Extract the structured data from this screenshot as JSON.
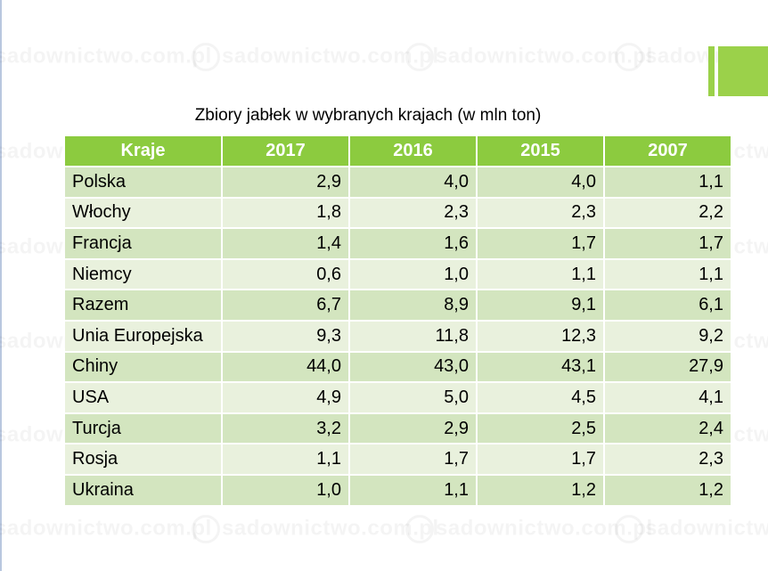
{
  "watermark": "sadownictwo.com.pl",
  "title": "Zbiory jabłek w wybranych krajach (w mln ton)",
  "table": {
    "headers": [
      "Kraje",
      "2017",
      "2016",
      "2015",
      "2007"
    ],
    "rows": [
      [
        "Polska",
        "2,9",
        "4,0",
        "4,0",
        "1,1"
      ],
      [
        "Włochy",
        "1,8",
        "2,3",
        "2,3",
        "2,2"
      ],
      [
        "Francja",
        "1,4",
        "1,6",
        "1,7",
        "1,7"
      ],
      [
        "Niemcy",
        "0,6",
        "1,0",
        "1,1",
        "1,1"
      ],
      [
        "Razem",
        "6,7",
        "8,9",
        "9,1",
        "6,1"
      ],
      [
        "Unia Europejska",
        "9,3",
        "11,8",
        "12,3",
        "9,2"
      ],
      [
        "Chiny",
        "44,0",
        "43,0",
        "43,1",
        "27,9"
      ],
      [
        "USA",
        "4,9",
        "5,0",
        "4,5",
        "4,1"
      ],
      [
        "Turcja",
        "3,2",
        "2,9",
        "2,5",
        "2,4"
      ],
      [
        "Rosja",
        "1,1",
        "1,7",
        "1,7",
        "2,3"
      ],
      [
        "Ukraina",
        "1,0",
        "1,1",
        "1,2",
        "1,2"
      ]
    ]
  },
  "colors": {
    "header_green": "#8ccb3f",
    "row_dark": "#d3e5bf",
    "row_light": "#e9f1dd",
    "accent_green": "#9bd14a"
  }
}
